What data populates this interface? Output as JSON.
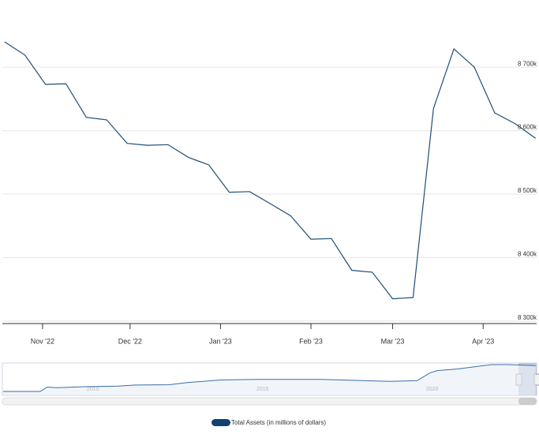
{
  "chart_data": {
    "type": "line",
    "x": [
      0,
      1,
      2,
      3,
      4,
      5,
      6,
      7,
      8,
      9,
      10,
      11,
      12,
      13,
      14,
      15,
      16,
      17,
      18,
      19,
      20,
      21,
      22,
      23,
      24,
      25,
      26
    ],
    "xlim": [
      -0.11,
      26.05
    ],
    "xticks": [
      {
        "value": 1.857,
        "label": "Nov '22"
      },
      {
        "value": 6.143,
        "label": "Dec '22"
      },
      {
        "value": 10.571,
        "label": "Jan '23"
      },
      {
        "value": 15.0,
        "label": "Feb '23"
      },
      {
        "value": 19.0,
        "label": "Mar '23"
      },
      {
        "value": 23.43,
        "label": "Apr '23"
      }
    ],
    "ylim": [
      8296000,
      8796000
    ],
    "yticks": [
      {
        "value": 8300000,
        "label": "8 300k"
      },
      {
        "value": 8400000,
        "label": "8 400k"
      },
      {
        "value": 8500000,
        "label": "8 500k"
      },
      {
        "value": 8600000,
        "label": "8 600k"
      },
      {
        "value": 8700000,
        "label": "8 700k"
      }
    ],
    "grid": true,
    "series": [
      {
        "name": "Total Assets (in millions of dollars)",
        "color": "#1f4e79",
        "values": [
          8740000,
          8719000,
          8673000,
          8674000,
          8621000,
          8617000,
          8580000,
          8577000,
          8578000,
          8558000,
          8546000,
          8503000,
          8504000,
          8485000,
          8466000,
          8429000,
          8430000,
          8380000,
          8377000,
          8335000,
          8337000,
          8635000,
          8729000,
          8700000,
          8628000,
          8611000,
          8588000
        ]
      }
    ],
    "navigator": {
      "x": [
        2007.6,
        2008.7,
        2008.9,
        2009.2,
        2010,
        2011,
        2011.5,
        2012.5,
        2013,
        2014,
        2015,
        2017,
        2019,
        2019.8,
        2020.2,
        2020.4,
        2021,
        2022,
        2022.5,
        2023.3
      ],
      "values": [
        900000,
        900000,
        2200000,
        2000000,
        2300000,
        2500000,
        2800000,
        2900000,
        3500000,
        4300000,
        4500000,
        4500000,
        3900000,
        4100000,
        6500000,
        7100000,
        7600000,
        8900000,
        8900000,
        8600000
      ],
      "xlim": [
        2007.58,
        2023.33
      ],
      "ylim": [
        -280000,
        9370000
      ],
      "xticks": [
        2010,
        2015,
        2020
      ]
    }
  }
}
